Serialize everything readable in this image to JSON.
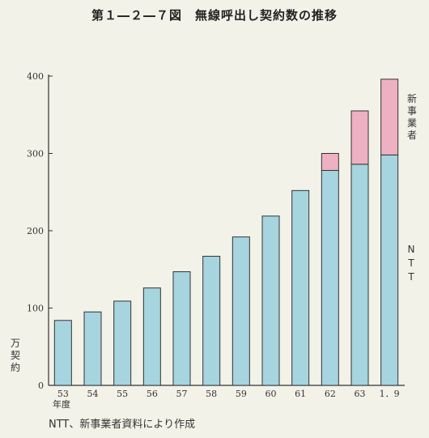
{
  "title": "第１―２―７図　無線呼出し契約数の推移",
  "source": "NTT、新事業者資料により作成",
  "chart_data": {
    "type": "bar",
    "stacked": true,
    "categories": [
      "53",
      "54",
      "55",
      "56",
      "57",
      "58",
      "59",
      "60",
      "61",
      "62",
      "63",
      "1．9"
    ],
    "x_unit": "年度",
    "y_unit": "万契約",
    "ylim": [
      0,
      400
    ],
    "yticks": [
      0,
      100,
      200,
      300,
      400
    ],
    "grid": false,
    "series": [
      {
        "name": "NTT",
        "color": "#a6d4df",
        "values": [
          84,
          95,
          109,
          126,
          147,
          167,
          192,
          219,
          252,
          278,
          286,
          298
        ]
      },
      {
        "name": "新事業者",
        "color": "#eeb0c3",
        "values": [
          0,
          0,
          0,
          0,
          0,
          0,
          0,
          0,
          0,
          22,
          69,
          98
        ]
      }
    ]
  }
}
